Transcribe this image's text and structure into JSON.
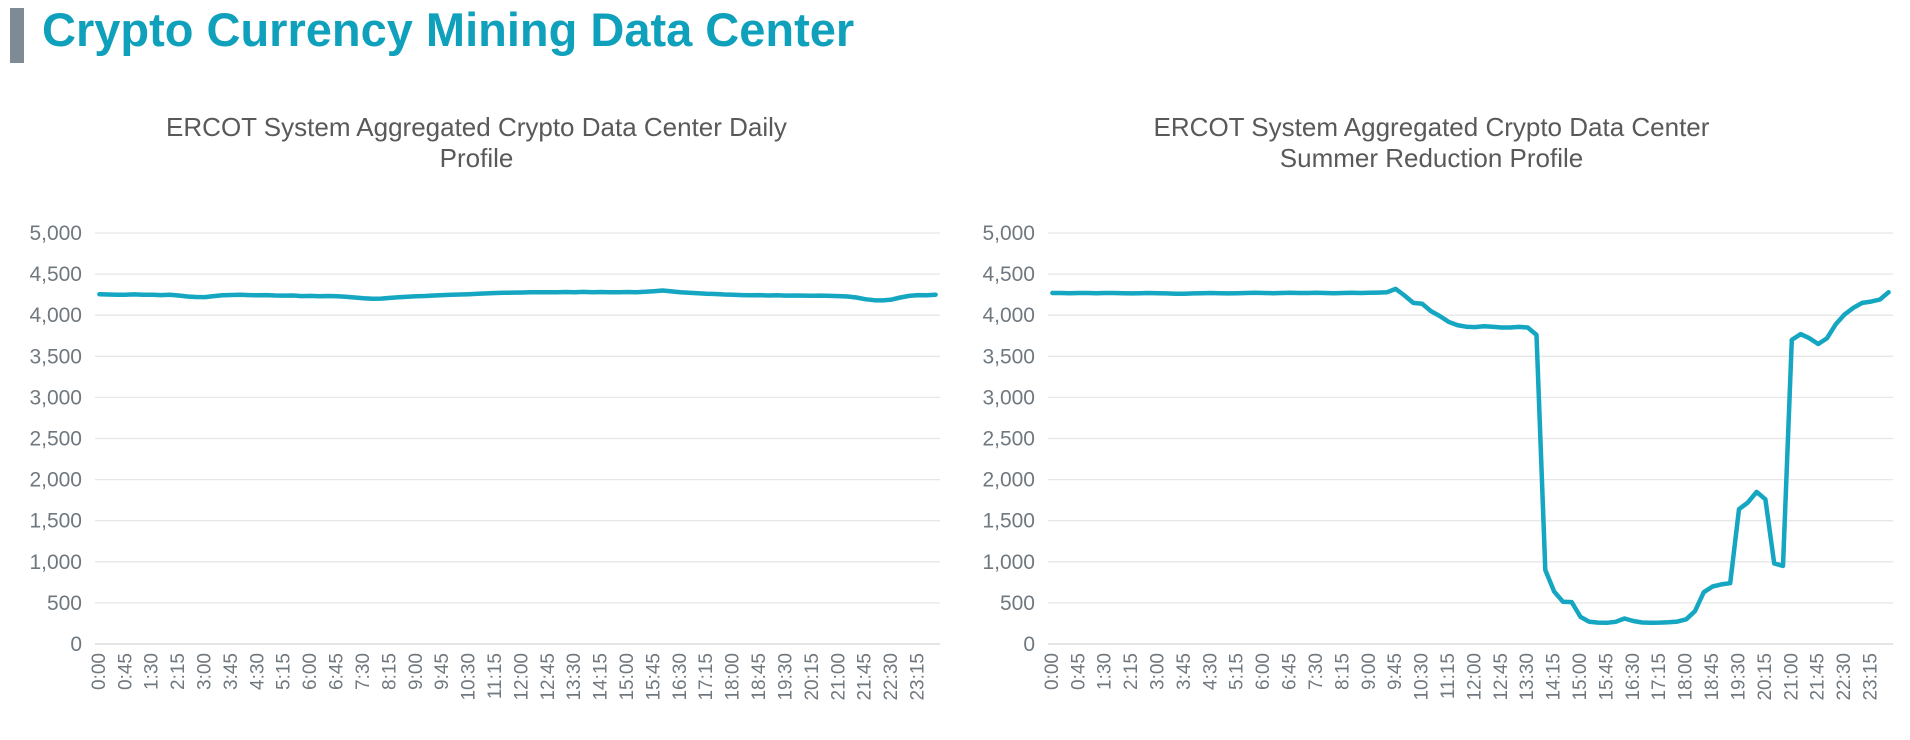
{
  "page": {
    "title": "Crypto Currency Mining Data Center",
    "title_color": "#0FA0BC",
    "accent_bar_color": "#7E8A94",
    "background_color": "#FFFFFF"
  },
  "chart_data": [
    {
      "type": "line",
      "title": "ERCOT System Aggregated Crypto Data Center Daily Profile",
      "title_line1": "ERCOT System Aggregated Crypto Data Center Daily",
      "title_line2": "Profile",
      "legend": "none",
      "grid": true,
      "line_color": "#15A6C2",
      "grid_color": "#E7E7E7",
      "axis_line_color": "#D5D5D5",
      "tick_label_color": "#70787F",
      "ylim": [
        0,
        5000
      ],
      "y_ticks": [
        0,
        500,
        1000,
        1500,
        2000,
        2500,
        3000,
        3500,
        4000,
        4500,
        5000
      ],
      "y_tick_labels": [
        "0",
        "500",
        "1,000",
        "1,500",
        "2,000",
        "2,500",
        "3,000",
        "3,500",
        "4,000",
        "4,500",
        "5,000"
      ],
      "x_start": "0:00",
      "x_interval_minutes": 15,
      "x_label_every_n_points": 3,
      "x_tick_labels": [
        "0:00",
        "0:45",
        "1:30",
        "2:15",
        "3:00",
        "3:45",
        "4:30",
        "5:15",
        "6:00",
        "6:45",
        "7:30",
        "8:15",
        "9:00",
        "9:45",
        "10:30",
        "11:15",
        "12:00",
        "12:45",
        "13:30",
        "14:15",
        "15:00",
        "15:45",
        "16:30",
        "17:15",
        "18:00",
        "18:45",
        "19:30",
        "20:15",
        "21:00",
        "21:45",
        "22:30",
        "23:15"
      ],
      "values": [
        4255,
        4252,
        4250,
        4250,
        4253,
        4250,
        4248,
        4245,
        4250,
        4240,
        4228,
        4222,
        4220,
        4232,
        4242,
        4246,
        4248,
        4245,
        4242,
        4245,
        4240,
        4238,
        4240,
        4232,
        4235,
        4230,
        4233,
        4230,
        4225,
        4215,
        4205,
        4200,
        4202,
        4210,
        4218,
        4224,
        4230,
        4234,
        4240,
        4244,
        4248,
        4252,
        4255,
        4260,
        4265,
        4270,
        4272,
        4275,
        4276,
        4278,
        4280,
        4280,
        4280,
        4282,
        4280,
        4283,
        4280,
        4282,
        4280,
        4280,
        4282,
        4280,
        4285,
        4292,
        4300,
        4290,
        4280,
        4272,
        4268,
        4262,
        4258,
        4252,
        4248,
        4245,
        4242,
        4245,
        4240,
        4242,
        4238,
        4240,
        4238,
        4236,
        4238,
        4235,
        4232,
        4228,
        4215,
        4195,
        4182,
        4180,
        4190,
        4215,
        4235,
        4245,
        4242,
        4250
      ]
    },
    {
      "type": "line",
      "title": "ERCOT System Aggregated Crypto Data Center Summer Reduction Profile",
      "title_line1": "ERCOT System Aggregated Crypto Data Center",
      "title_line2": "Summer Reduction Profile",
      "legend": "none",
      "grid": true,
      "line_color": "#15A6C2",
      "grid_color": "#E7E7E7",
      "axis_line_color": "#D5D5D5",
      "tick_label_color": "#70787F",
      "ylim": [
        0,
        5000
      ],
      "y_ticks": [
        0,
        500,
        1000,
        1500,
        2000,
        2500,
        3000,
        3500,
        4000,
        4500,
        5000
      ],
      "y_tick_labels": [
        "0",
        "500",
        "1,000",
        "1,500",
        "2,000",
        "2,500",
        "3,000",
        "3,500",
        "4,000",
        "4,500",
        "5,000"
      ],
      "x_start": "0:00",
      "x_interval_minutes": 15,
      "x_label_every_n_points": 3,
      "x_tick_labels": [
        "0:00",
        "0:45",
        "1:30",
        "2:15",
        "3:00",
        "3:45",
        "4:30",
        "5:15",
        "6:00",
        "6:45",
        "7:30",
        "8:15",
        "9:00",
        "9:45",
        "10:30",
        "11:15",
        "12:00",
        "12:45",
        "13:30",
        "14:15",
        "15:00",
        "15:45",
        "16:30",
        "17:15",
        "18:00",
        "18:45",
        "19:30",
        "20:15",
        "21:00",
        "21:45",
        "22:30",
        "23:15"
      ],
      "values": [
        4270,
        4270,
        4268,
        4270,
        4270,
        4268,
        4270,
        4270,
        4268,
        4265,
        4268,
        4270,
        4268,
        4265,
        4260,
        4262,
        4265,
        4268,
        4270,
        4268,
        4265,
        4268,
        4270,
        4272,
        4270,
        4268,
        4270,
        4272,
        4270,
        4270,
        4272,
        4270,
        4268,
        4270,
        4272,
        4270,
        4272,
        4275,
        4278,
        4320,
        4240,
        4150,
        4140,
        4050,
        3990,
        3920,
        3880,
        3860,
        3855,
        3865,
        3860,
        3850,
        3850,
        3858,
        3850,
        3760,
        900,
        640,
        515,
        510,
        330,
        270,
        260,
        258,
        270,
        310,
        280,
        262,
        258,
        260,
        265,
        272,
        300,
        400,
        630,
        700,
        725,
        740,
        1640,
        1720,
        1850,
        1760,
        980,
        950,
        3700,
        3770,
        3720,
        3650,
        3720,
        3890,
        4010,
        4090,
        4150,
        4165,
        4190,
        4280
      ]
    }
  ]
}
